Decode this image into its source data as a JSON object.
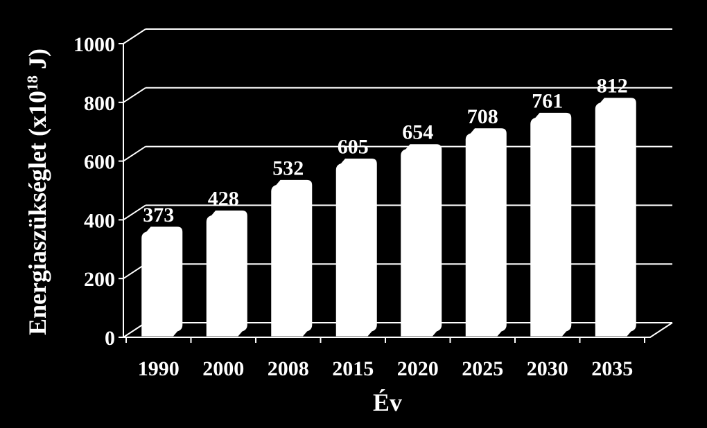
{
  "colors": {
    "background": "#000000",
    "bar_fill": "#ffffff",
    "grid": "#ffffff",
    "text": "#ffffff"
  },
  "chart_data": {
    "type": "bar",
    "style": "3d-columns",
    "categories": [
      "1990",
      "2000",
      "2008",
      "2015",
      "2020",
      "2025",
      "2030",
      "2035"
    ],
    "values": [
      373,
      428,
      532,
      605,
      654,
      708,
      761,
      812
    ],
    "data_labels": [
      "373",
      "428",
      "532",
      "605",
      "654",
      "708",
      "761",
      "812"
    ],
    "title": "",
    "xlabel": "Év",
    "ylabel": "Energiaszükséglet (x10",
    "ylabel_superscript": "18",
    "ylabel_suffix": " J)",
    "ylim": [
      0,
      1000
    ],
    "yticks": [
      0,
      200,
      400,
      600,
      800,
      1000
    ],
    "ytick_labels": [
      "0",
      "200",
      "400",
      "600",
      "800",
      "1000"
    ],
    "grid": true,
    "legend": "none"
  }
}
